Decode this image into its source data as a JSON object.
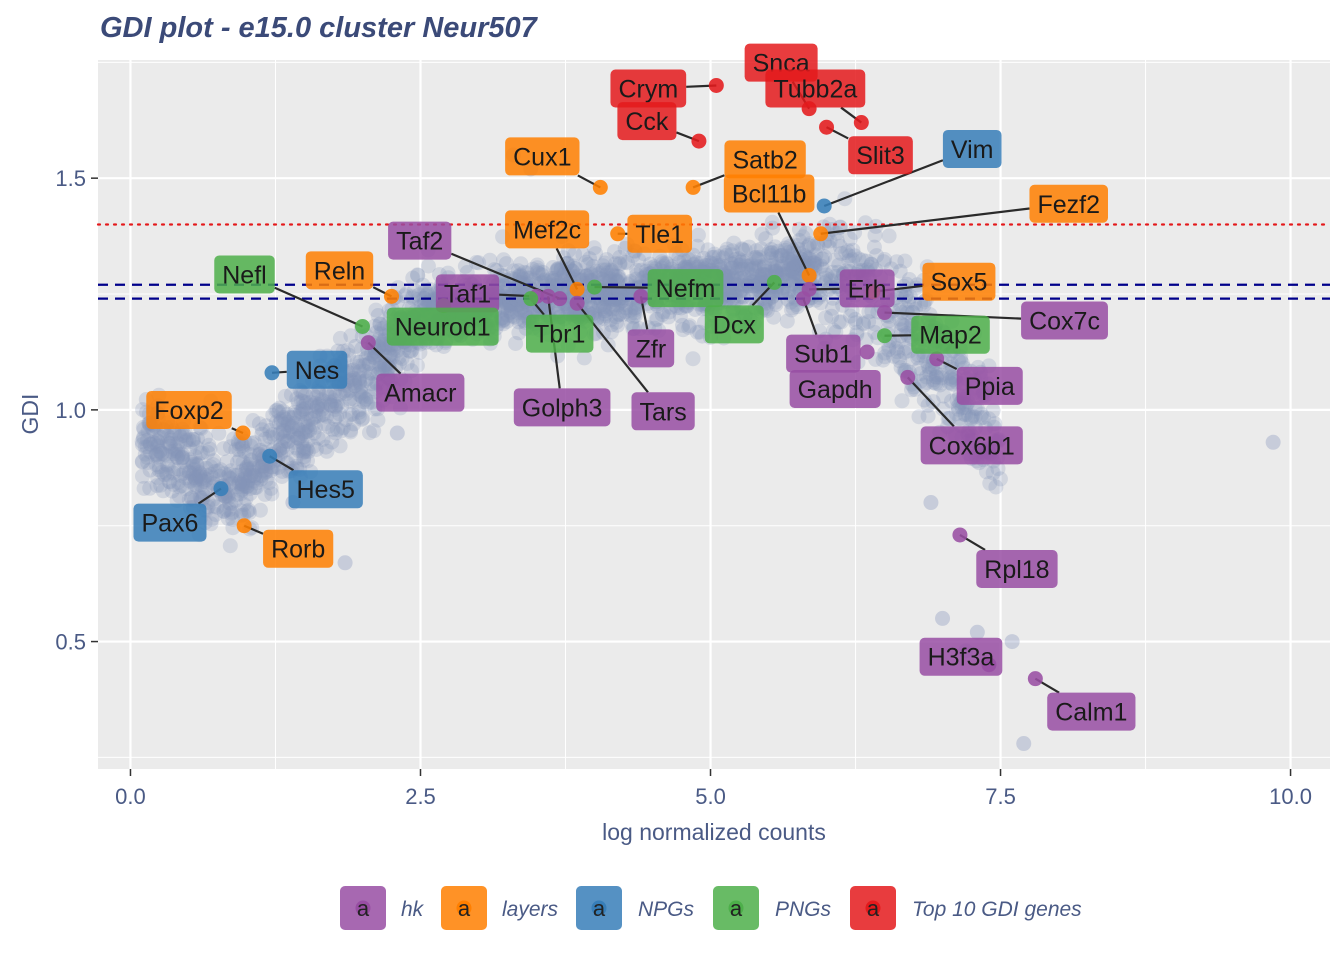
{
  "chart_data": {
    "type": "scatter",
    "title": "GDI plot - e15.0 cluster Neur507",
    "xlabel": "log normalized counts",
    "ylabel": "GDI",
    "xlim": [
      -0.28,
      10.34
    ],
    "ylim": [
      0.225,
      1.755
    ],
    "x_ticks": [
      0,
      2.5,
      5,
      7.5,
      10
    ],
    "x_tick_labels": [
      "0.0",
      "2.5",
      "5.0",
      "7.5",
      "10.0"
    ],
    "y_ticks": [
      0.5,
      1.0,
      1.5
    ],
    "y_tick_labels": [
      "0.5",
      "1.0",
      "1.5"
    ],
    "grid": true,
    "legend_position": "bottom",
    "hlines": [
      {
        "y": 1.4,
        "color": "#e41a1c",
        "style": "dotted"
      },
      {
        "y": 1.27,
        "color": "#00008b",
        "style": "dashed"
      },
      {
        "y": 1.24,
        "color": "#00008b",
        "style": "dashed"
      }
    ],
    "background_color": "#8592b9",
    "legend": [
      {
        "name": "hk",
        "color": "#984ea3",
        "key_letter": "a"
      },
      {
        "name": "layers",
        "color": "#ff7f00",
        "key_letter": "a"
      },
      {
        "name": "NPGs",
        "color": "#377eb8",
        "key_letter": "a"
      },
      {
        "name": "PNGs",
        "color": "#4daf4a",
        "key_letter": "a"
      },
      {
        "name": "Top 10 GDI genes",
        "color": "#e41a1c",
        "key_letter": "a"
      }
    ],
    "highlighted_genes": [
      {
        "gene": "Crym",
        "x": 5.05,
        "y": 1.7,
        "group": "Top 10 GDI genes"
      },
      {
        "gene": "Snca",
        "x": 5.85,
        "y": 1.65,
        "group": "Top 10 GDI genes"
      },
      {
        "gene": "Tubb2a",
        "x": 6.3,
        "y": 1.62,
        "group": "Top 10 GDI genes"
      },
      {
        "gene": "Cck",
        "x": 4.9,
        "y": 1.58,
        "group": "Top 10 GDI genes"
      },
      {
        "gene": "Slit3",
        "x": 6.0,
        "y": 1.61,
        "group": "Top 10 GDI genes"
      },
      {
        "gene": "Cux1",
        "x": 4.05,
        "y": 1.48,
        "group": "layers"
      },
      {
        "gene": "Satb2",
        "x": 4.85,
        "y": 1.48,
        "group": "layers"
      },
      {
        "gene": "Vim",
        "x": 5.98,
        "y": 1.44,
        "group": "NPGs"
      },
      {
        "gene": "Taf2",
        "x": 3.7,
        "y": 1.24,
        "group": "hk"
      },
      {
        "gene": "Mef2c",
        "x": 3.85,
        "y": 1.26,
        "group": "layers"
      },
      {
        "gene": "Tle1",
        "x": 4.2,
        "y": 1.38,
        "group": "layers"
      },
      {
        "gene": "Bcl11b",
        "x": 5.85,
        "y": 1.29,
        "group": "layers"
      },
      {
        "gene": "Fezf2",
        "x": 5.95,
        "y": 1.38,
        "group": "layers"
      },
      {
        "gene": "Reln",
        "x": 2.25,
        "y": 1.245,
        "group": "layers"
      },
      {
        "gene": "Taf1",
        "x": 3.5,
        "y": 1.245,
        "group": "hk"
      },
      {
        "gene": "Nefm",
        "x": 4.0,
        "y": 1.265,
        "group": "PNGs"
      },
      {
        "gene": "Erh",
        "x": 5.85,
        "y": 1.26,
        "group": "hk"
      },
      {
        "gene": "Sox5",
        "x": 6.4,
        "y": 1.255,
        "group": "layers"
      },
      {
        "gene": "Nefl",
        "x": 2.0,
        "y": 1.18,
        "group": "PNGs"
      },
      {
        "gene": "Neurod1",
        "x": 2.7,
        "y": 1.225,
        "group": "PNGs"
      },
      {
        "gene": "Tbr1",
        "x": 3.45,
        "y": 1.24,
        "group": "PNGs"
      },
      {
        "gene": "Zfr",
        "x": 4.4,
        "y": 1.245,
        "group": "hk"
      },
      {
        "gene": "Dcx",
        "x": 5.55,
        "y": 1.275,
        "group": "PNGs"
      },
      {
        "gene": "Sub1",
        "x": 5.8,
        "y": 1.24,
        "group": "hk"
      },
      {
        "gene": "Map2",
        "x": 6.5,
        "y": 1.16,
        "group": "PNGs"
      },
      {
        "gene": "Cox7c",
        "x": 6.5,
        "y": 1.21,
        "group": "hk"
      },
      {
        "gene": "Nes",
        "x": 1.22,
        "y": 1.08,
        "group": "NPGs"
      },
      {
        "gene": "Amacr",
        "x": 2.05,
        "y": 1.145,
        "group": "hk"
      },
      {
        "gene": "Golph3",
        "x": 3.6,
        "y": 1.245,
        "group": "hk"
      },
      {
        "gene": "Tars",
        "x": 3.85,
        "y": 1.23,
        "group": "hk"
      },
      {
        "gene": "Gapdh",
        "x": 6.35,
        "y": 1.125,
        "group": "hk"
      },
      {
        "gene": "Ppia",
        "x": 6.95,
        "y": 1.11,
        "group": "hk"
      },
      {
        "gene": "Cox6b1",
        "x": 6.7,
        "y": 1.07,
        "group": "hk"
      },
      {
        "gene": "Foxp2",
        "x": 0.97,
        "y": 0.95,
        "group": "layers"
      },
      {
        "gene": "Hes5",
        "x": 1.2,
        "y": 0.9,
        "group": "NPGs"
      },
      {
        "gene": "Pax6",
        "x": 0.78,
        "y": 0.83,
        "group": "NPGs"
      },
      {
        "gene": "Rorb",
        "x": 0.98,
        "y": 0.75,
        "group": "layers"
      },
      {
        "gene": "Rpl18",
        "x": 7.15,
        "y": 0.73,
        "group": "hk"
      },
      {
        "gene": "H3f3a",
        "x": 7.4,
        "y": 0.45,
        "group": "hk"
      },
      {
        "gene": "Calm1",
        "x": 7.8,
        "y": 0.42,
        "group": "hk"
      }
    ],
    "background_points_outliers": [
      {
        "x": 9.85,
        "y": 0.93
      },
      {
        "x": 7.7,
        "y": 0.28
      },
      {
        "x": 7.2,
        "y": 0.48
      },
      {
        "x": 7.0,
        "y": 0.55
      },
      {
        "x": 6.9,
        "y": 0.8
      },
      {
        "x": 7.3,
        "y": 0.52
      },
      {
        "x": 7.6,
        "y": 0.5
      },
      {
        "x": 1.85,
        "y": 0.67
      },
      {
        "x": 1.4,
        "y": 0.8
      },
      {
        "x": 3.3,
        "y": 1.55
      },
      {
        "x": 3.45,
        "y": 1.52
      },
      {
        "x": 2.3,
        "y": 0.95
      }
    ]
  }
}
